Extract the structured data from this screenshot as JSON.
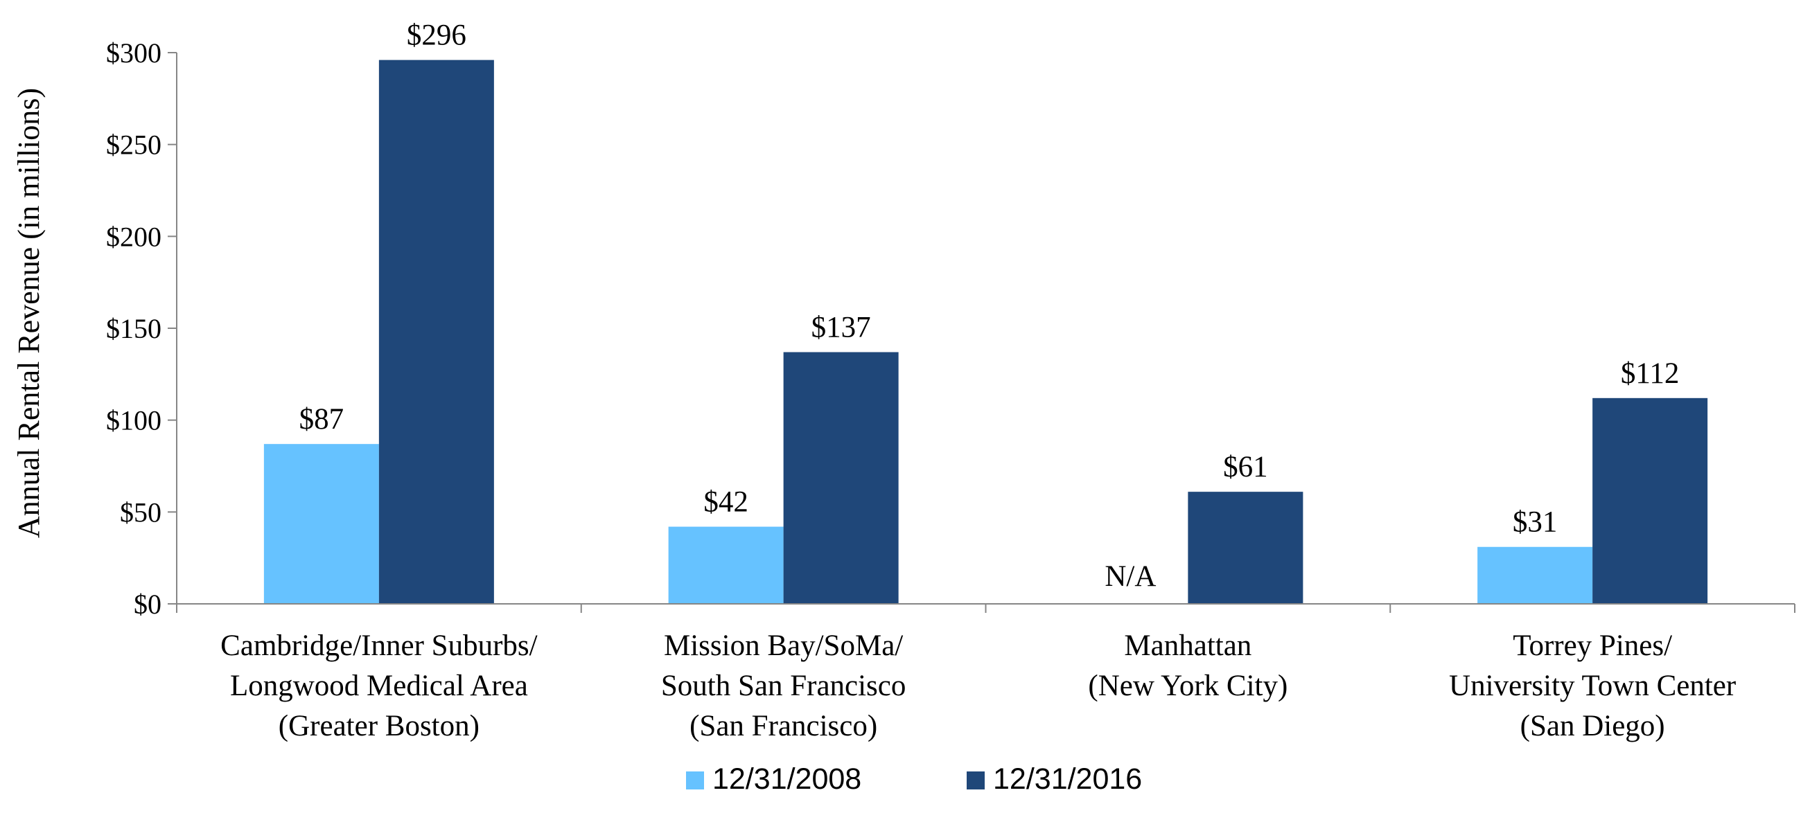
{
  "chart_data": {
    "type": "bar",
    "title": "",
    "ylabel": "Annual Rental Revenue (in millions)",
    "xlabel": "",
    "ylim": [
      0,
      300
    ],
    "yticks": [
      0,
      50,
      100,
      150,
      200,
      250,
      300
    ],
    "ytick_labels": [
      "$0",
      "$50",
      "$100",
      "$150",
      "$200",
      "$250",
      "$300"
    ],
    "grid": false,
    "legend_position": "bottom-center",
    "categories": [
      [
        "Cambridge/Inner Suburbs/",
        "Longwood Medical Area",
        "(Greater Boston)"
      ],
      [
        "Mission Bay/SoMa/",
        "South San Francisco",
        "(San Francisco)"
      ],
      [
        "Manhattan",
        "(New York City)"
      ],
      [
        "Torrey Pines/",
        "University Town Center",
        "(San Diego)"
      ]
    ],
    "series": [
      {
        "name": "12/31/2008",
        "color": "#66c2ff",
        "values": [
          87,
          42,
          null,
          31
        ],
        "labels": [
          "$87",
          "$42",
          "N/A",
          "$31"
        ]
      },
      {
        "name": "12/31/2016",
        "color": "#1f4779",
        "values": [
          296,
          137,
          61,
          112
        ],
        "labels": [
          "$296",
          "$137",
          "$61",
          "$112"
        ]
      }
    ]
  }
}
